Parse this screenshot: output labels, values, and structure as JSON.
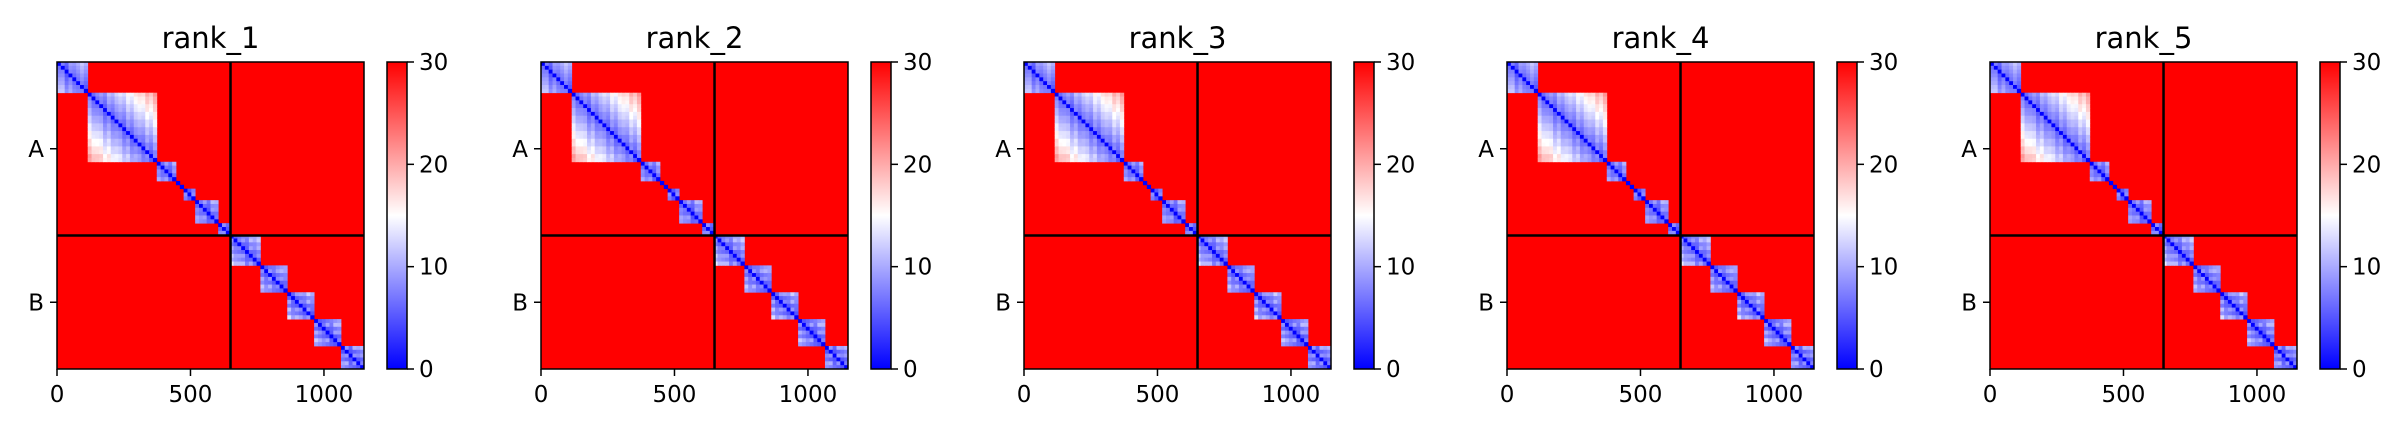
{
  "chart_data": [
    {
      "type": "heatmap",
      "title": "rank_1",
      "xlabel": "",
      "ylabel": "",
      "xlim": [
        0,
        1150
      ],
      "ylim": [
        1150,
        0
      ],
      "x_ticks": [
        0,
        500,
        1000
      ],
      "y_tick_labels": [
        "A",
        "B"
      ],
      "chain_lengths": {
        "A": 650,
        "B": 500
      },
      "chain_boundary": 650,
      "colorbar": {
        "min": 0,
        "max": 30,
        "ticks": [
          0,
          10,
          20,
          30
        ],
        "colormap": "bwr"
      },
      "domains": [
        [
          0,
          120
        ],
        [
          120,
          380
        ],
        [
          380,
          450
        ],
        [
          470,
          520
        ],
        [
          520,
          610
        ],
        [
          610,
          650
        ],
        [
          650,
          760
        ],
        [
          760,
          860
        ],
        [
          860,
          960
        ],
        [
          960,
          1060
        ],
        [
          1060,
          1150
        ]
      ],
      "colors": {
        "low": "#0000ff",
        "mid": "#ffffff",
        "high": "#ff0000"
      }
    },
    {
      "type": "heatmap",
      "title": "rank_2",
      "xlabel": "",
      "ylabel": "",
      "xlim": [
        0,
        1150
      ],
      "ylim": [
        1150,
        0
      ],
      "x_ticks": [
        0,
        500,
        1000
      ],
      "y_tick_labels": [
        "A",
        "B"
      ],
      "chain_lengths": {
        "A": 650,
        "B": 500
      },
      "chain_boundary": 650,
      "colorbar": {
        "min": 0,
        "max": 30,
        "ticks": [
          0,
          10,
          20,
          30
        ],
        "colormap": "bwr"
      },
      "domains": [
        [
          0,
          120
        ],
        [
          120,
          380
        ],
        [
          380,
          450
        ],
        [
          470,
          520
        ],
        [
          520,
          610
        ],
        [
          610,
          650
        ],
        [
          650,
          760
        ],
        [
          760,
          860
        ],
        [
          860,
          960
        ],
        [
          960,
          1060
        ],
        [
          1060,
          1150
        ]
      ],
      "colors": {
        "low": "#0000ff",
        "mid": "#ffffff",
        "high": "#ff0000"
      }
    },
    {
      "type": "heatmap",
      "title": "rank_3",
      "xlabel": "",
      "ylabel": "",
      "xlim": [
        0,
        1150
      ],
      "ylim": [
        1150,
        0
      ],
      "x_ticks": [
        0,
        500,
        1000
      ],
      "y_tick_labels": [
        "A",
        "B"
      ],
      "chain_lengths": {
        "A": 650,
        "B": 500
      },
      "chain_boundary": 650,
      "colorbar": {
        "min": 0,
        "max": 30,
        "ticks": [
          0,
          10,
          20,
          30
        ],
        "colormap": "bwr"
      },
      "domains": [
        [
          0,
          120
        ],
        [
          120,
          380
        ],
        [
          380,
          450
        ],
        [
          470,
          520
        ],
        [
          520,
          610
        ],
        [
          610,
          650
        ],
        [
          650,
          760
        ],
        [
          760,
          860
        ],
        [
          860,
          960
        ],
        [
          960,
          1060
        ],
        [
          1060,
          1150
        ]
      ],
      "colors": {
        "low": "#0000ff",
        "mid": "#ffffff",
        "high": "#ff0000"
      }
    },
    {
      "type": "heatmap",
      "title": "rank_4",
      "xlabel": "",
      "ylabel": "",
      "xlim": [
        0,
        1150
      ],
      "ylim": [
        1150,
        0
      ],
      "x_ticks": [
        0,
        500,
        1000
      ],
      "y_tick_labels": [
        "A",
        "B"
      ],
      "chain_lengths": {
        "A": 650,
        "B": 500
      },
      "chain_boundary": 650,
      "colorbar": {
        "min": 0,
        "max": 30,
        "ticks": [
          0,
          10,
          20,
          30
        ],
        "colormap": "bwr"
      },
      "domains": [
        [
          0,
          120
        ],
        [
          120,
          380
        ],
        [
          380,
          450
        ],
        [
          470,
          520
        ],
        [
          520,
          610
        ],
        [
          610,
          650
        ],
        [
          650,
          760
        ],
        [
          760,
          860
        ],
        [
          860,
          960
        ],
        [
          960,
          1060
        ],
        [
          1060,
          1150
        ]
      ],
      "colors": {
        "low": "#0000ff",
        "mid": "#ffffff",
        "high": "#ff0000"
      }
    },
    {
      "type": "heatmap",
      "title": "rank_5",
      "xlabel": "",
      "ylabel": "",
      "xlim": [
        0,
        1150
      ],
      "ylim": [
        1150,
        0
      ],
      "x_ticks": [
        0,
        500,
        1000
      ],
      "y_tick_labels": [
        "A",
        "B"
      ],
      "chain_lengths": {
        "A": 650,
        "B": 500
      },
      "chain_boundary": 650,
      "colorbar": {
        "min": 0,
        "max": 30,
        "ticks": [
          0,
          10,
          20,
          30
        ],
        "colormap": "bwr"
      },
      "domains": [
        [
          0,
          120
        ],
        [
          120,
          380
        ],
        [
          380,
          450
        ],
        [
          470,
          520
        ],
        [
          520,
          610
        ],
        [
          610,
          650
        ],
        [
          650,
          760
        ],
        [
          760,
          860
        ],
        [
          860,
          960
        ],
        [
          960,
          1060
        ],
        [
          1060,
          1150
        ]
      ],
      "colors": {
        "low": "#0000ff",
        "mid": "#ffffff",
        "high": "#ff0000"
      }
    }
  ]
}
